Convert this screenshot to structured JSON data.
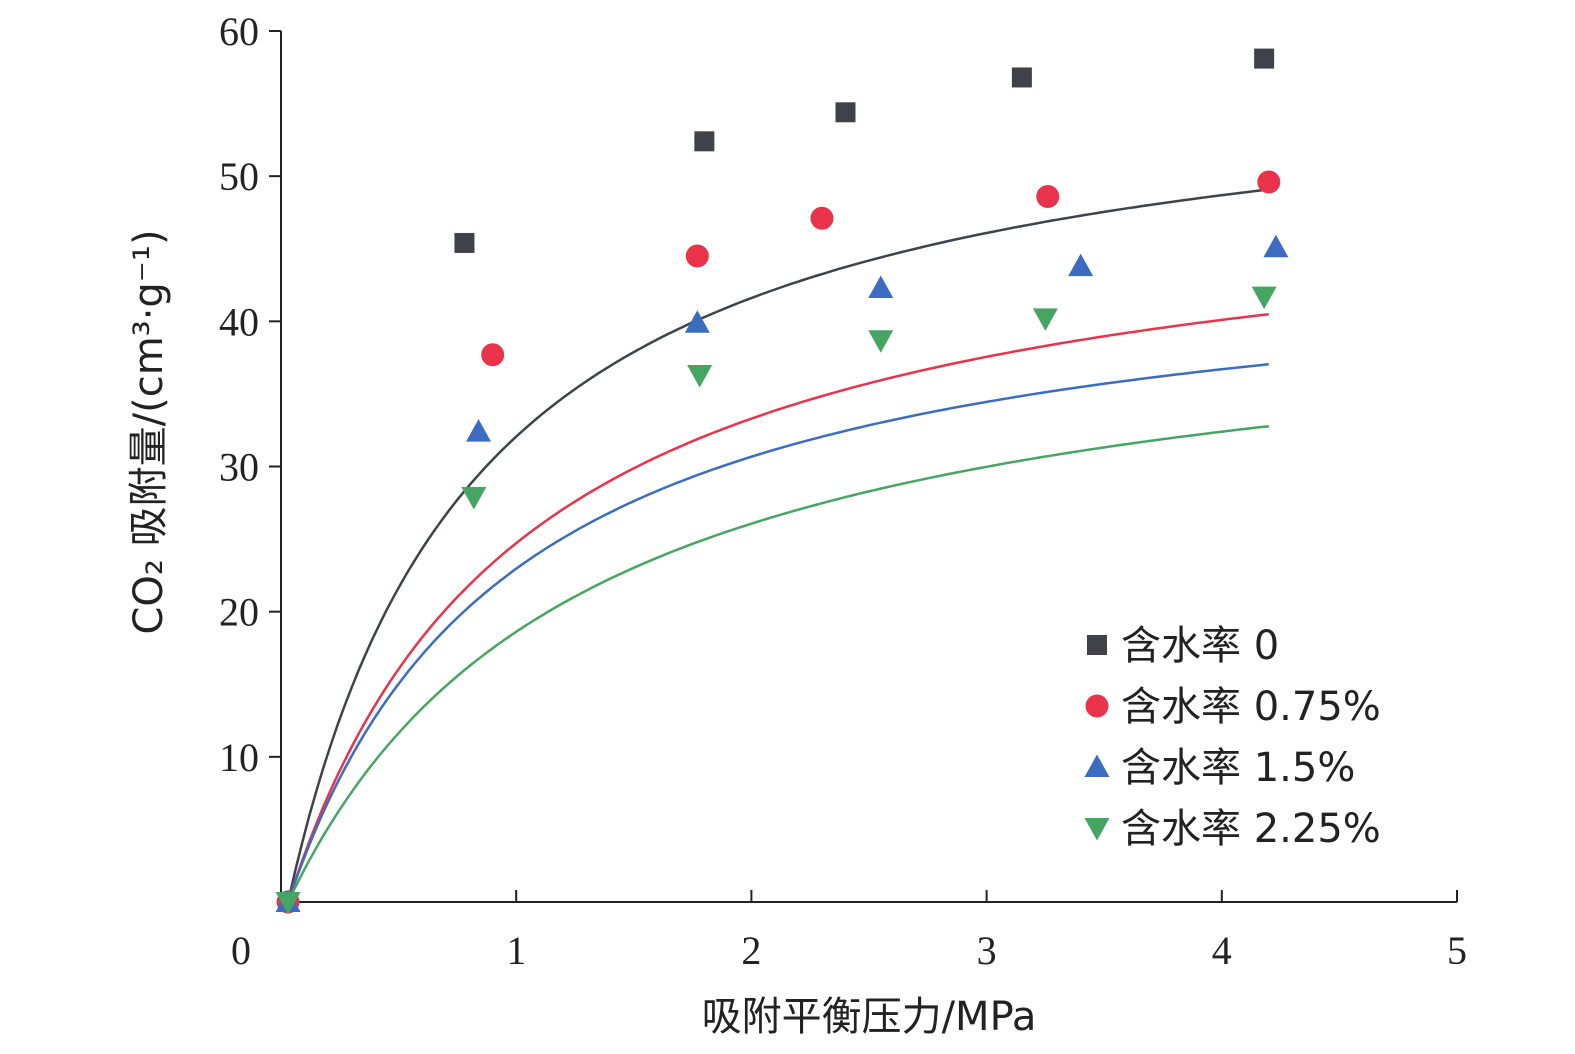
{
  "chart_data": {
    "type": "scatter",
    "xlabel": "吸附平衡压力/MPa",
    "ylabel": "CO₂ 吸附量/(cm³·g⁻¹)",
    "xlim": [
      0,
      5
    ],
    "ylim": [
      0,
      60
    ],
    "x_ticks": [
      0,
      1,
      2,
      3,
      4,
      5
    ],
    "y_ticks": [
      10,
      20,
      30,
      40,
      50,
      60
    ],
    "grid": false,
    "legend_position": "bottom-right",
    "series": [
      {
        "name": "含水率 0",
        "marker": "square",
        "color": "#3f4349",
        "points": [
          [
            0.03,
            0
          ],
          [
            0.78,
            45.4
          ],
          [
            1.8,
            52.4
          ],
          [
            2.4,
            54.4
          ],
          [
            3.15,
            56.8
          ],
          [
            4.18,
            58.1
          ]
        ],
        "fit": {
          "qmax": 58.5,
          "b": 1.25
        }
      },
      {
        "name": "含水率 0.75%",
        "marker": "circle",
        "color": "#e8334a",
        "points": [
          [
            0.03,
            0
          ],
          [
            0.9,
            37.7
          ],
          [
            1.77,
            44.5
          ],
          [
            2.3,
            47.1
          ],
          [
            3.26,
            48.6
          ],
          [
            4.2,
            49.6
          ]
        ],
        "fit": {
          "qmax": 50.2,
          "b": 1.0
        }
      },
      {
        "name": "含水率 1.5%",
        "marker": "triangle-up",
        "color": "#3b6cc1",
        "points": [
          [
            0.03,
            0
          ],
          [
            0.84,
            32.4
          ],
          [
            1.77,
            39.9
          ],
          [
            2.55,
            42.3
          ],
          [
            3.4,
            43.8
          ],
          [
            4.23,
            45.1
          ]
        ],
        "fit": {
          "qmax": 45.5,
          "b": 1.05
        }
      },
      {
        "name": "含水率 2.25%",
        "marker": "triangle-down",
        "color": "#47a564",
        "points": [
          [
            0.03,
            0
          ],
          [
            0.82,
            27.9
          ],
          [
            1.78,
            36.3
          ],
          [
            2.55,
            38.7
          ],
          [
            3.25,
            40.2
          ],
          [
            4.18,
            41.7
          ]
        ],
        "fit": {
          "qmax": 42.6,
          "b": 0.8
        }
      }
    ]
  }
}
